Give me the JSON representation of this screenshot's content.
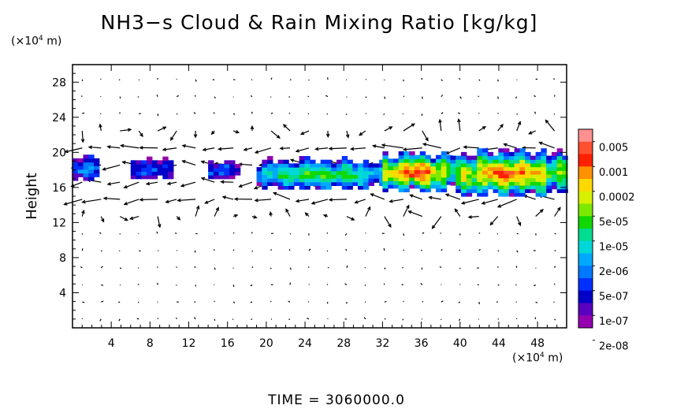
{
  "chart_data": {
    "type": "heatmap",
    "title": "NH3−s Cloud & Rain Mixing Ratio [kg/kg]",
    "units": "[kg/kg]",
    "ylabel": "Height",
    "x_unit_prefix": "(×10",
    "x_unit_exp": "4",
    "x_unit_suffix": " m)",
    "y_unit_prefix": "(×10",
    "y_unit_exp": "4",
    "y_unit_suffix": " m)",
    "xlim": [
      0,
      51
    ],
    "ylim": [
      0,
      30
    ],
    "x_ticks": [
      4,
      8,
      12,
      16,
      20,
      24,
      28,
      32,
      36,
      40,
      44,
      48
    ],
    "y_ticks": [
      4,
      8,
      12,
      16,
      20,
      24,
      28
    ],
    "x_tick_labels": [
      "4",
      "8",
      "12",
      "16",
      "20",
      "24",
      "28",
      "32",
      "36",
      "40",
      "44",
      "48"
    ],
    "y_tick_labels": [
      "4",
      "8",
      "12",
      "16",
      "20",
      "24",
      "28"
    ],
    "colorbar": {
      "labels": [
        "0.005",
        "0.001",
        "0.0002",
        "5e-05",
        "1e-05",
        "2e-06",
        "5e-07",
        "1e-07",
        "2e-08"
      ],
      "colors": [
        "#ff9090",
        "#ff5030",
        "#ff2000",
        "#ff9000",
        "#ffd800",
        "#d8f000",
        "#7ce800",
        "#10d800",
        "#00dc90",
        "#00d8d8",
        "#00a8ff",
        "#0078ff",
        "#0030ff",
        "#0000c8",
        "#5a00c0",
        "#9400b0"
      ]
    },
    "cloud_regions": [
      {
        "x": [
          0.0,
          2.6
        ],
        "y": [
          16.8,
          19.5
        ],
        "peak_log": -6.0
      },
      {
        "x": [
          6.0,
          10.0
        ],
        "y": [
          17.0,
          19.3
        ],
        "peak_log": -6.5
      },
      {
        "x": [
          14.0,
          17.0
        ],
        "y": [
          17.0,
          19.0
        ],
        "peak_log": -6.5
      },
      {
        "x": [
          19.0,
          32.0
        ],
        "y": [
          15.8,
          19.2
        ],
        "peak_log": -4.5
      },
      {
        "x": [
          32.0,
          39.0
        ],
        "y": [
          15.5,
          20.0
        ],
        "peak_log": -2.5
      },
      {
        "x": [
          39.0,
          51.0
        ],
        "y": [
          15.0,
          20.2
        ],
        "peak_log": -2.8
      }
    ],
    "time_label": "TIME  =  3060000.0",
    "grid": false,
    "legend": "right"
  }
}
